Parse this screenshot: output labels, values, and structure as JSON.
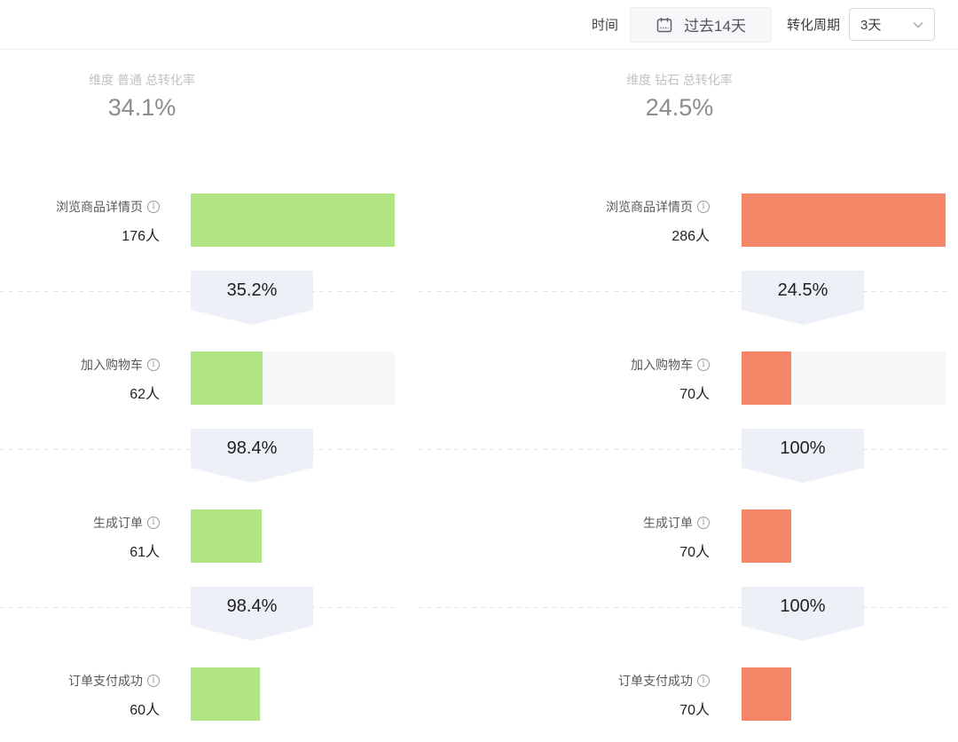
{
  "toolbar": {
    "time_label": "时间",
    "date_range_value": "过去14天",
    "period_label": "转化周期",
    "period_value": "3天"
  },
  "colors": {
    "normal_bar": "#b1e583",
    "diamond_bar": "#f58768",
    "bar_track": "#f7f7f7",
    "badge_bg": "#eef0f8",
    "dash_line": "#e2e2e2",
    "info_icon": "i"
  },
  "chart_data": [
    {
      "type": "funnel",
      "title": "维度 普通 总转化率",
      "total_rate": 34.1,
      "total_rate_text": "34.1%",
      "bar_color_key": "normal_bar",
      "steps": [
        {
          "label": "浏览商品详情页",
          "count": 176,
          "count_text": "176人"
        },
        {
          "label": "加入购物车",
          "count": 62,
          "count_text": "62人"
        },
        {
          "label": "生成订单",
          "count": 61,
          "count_text": "61人"
        },
        {
          "label": "订单支付成功",
          "count": 60,
          "count_text": "60人"
        }
      ],
      "step_conversions": [
        "35.2%",
        "98.4%",
        "98.4%"
      ]
    },
    {
      "type": "funnel",
      "title": "维度 钻石 总转化率",
      "total_rate": 24.5,
      "total_rate_text": "24.5%",
      "bar_color_key": "diamond_bar",
      "steps": [
        {
          "label": "浏览商品详情页",
          "count": 286,
          "count_text": "286人"
        },
        {
          "label": "加入购物车",
          "count": 70,
          "count_text": "70人"
        },
        {
          "label": "生成订单",
          "count": 70,
          "count_text": "70人"
        },
        {
          "label": "订单支付成功",
          "count": 70,
          "count_text": "70人"
        }
      ],
      "step_conversions": [
        "24.5%",
        "100%",
        "100%"
      ]
    }
  ]
}
